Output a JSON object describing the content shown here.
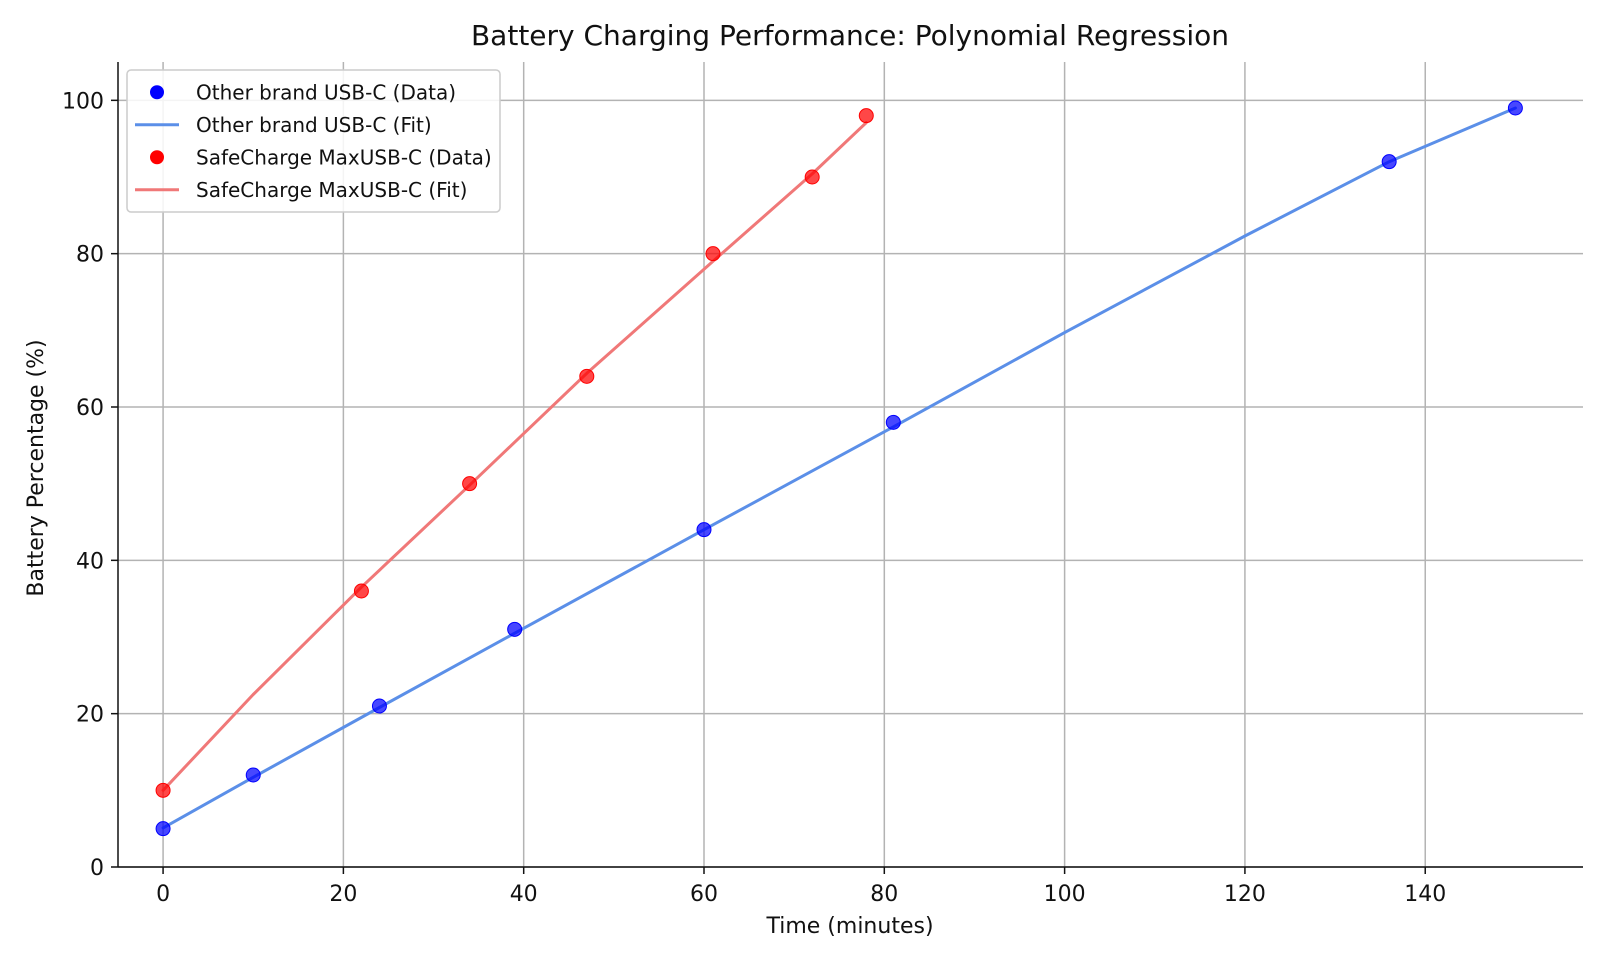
{
  "chart_data": {
    "type": "scatter",
    "title": "Battery Charging Performance: Polynomial Regression",
    "xlabel": "Time (minutes)",
    "ylabel": "Battery Percentage (%)",
    "xlim": [
      -5,
      157.5
    ],
    "ylim": [
      0,
      105
    ],
    "xticks": [
      0,
      20,
      40,
      60,
      80,
      100,
      120,
      140
    ],
    "yticks": [
      0,
      20,
      40,
      60,
      80,
      100
    ],
    "grid": true,
    "legend_position": "top-left",
    "series": [
      {
        "name": "Other brand USB-C (Data)",
        "kind": "points",
        "color": "#0000ff",
        "x": [
          0,
          10,
          24,
          39,
          60,
          81,
          136,
          150
        ],
        "y": [
          5,
          12,
          21,
          31,
          44,
          58,
          92,
          99
        ]
      },
      {
        "name": "Other brand USB-C (Fit)",
        "kind": "line",
        "color": "#5b8fe8",
        "x": [
          0,
          10,
          24,
          39,
          60,
          81,
          100,
          120,
          136,
          150
        ],
        "y": [
          5.1,
          11.7,
          20.8,
          30.5,
          44.0,
          57.4,
          69.7,
          82.3,
          92.0,
          99.0
        ]
      },
      {
        "name": "SafeCharge MaxUSB-C (Data)",
        "kind": "points",
        "color": "#ff0000",
        "x": [
          0,
          22,
          34,
          47,
          61,
          72,
          78
        ],
        "y": [
          10,
          36,
          50,
          64,
          80,
          90,
          98
        ]
      },
      {
        "name": "SafeCharge MaxUSB-C (Fit)",
        "kind": "line",
        "color": "#f07878",
        "x": [
          0,
          10,
          22,
          34,
          47,
          61,
          72,
          78
        ],
        "y": [
          10.0,
          22.5,
          36.5,
          49.8,
          64.4,
          79.0,
          90.4,
          97.1
        ]
      }
    ]
  }
}
